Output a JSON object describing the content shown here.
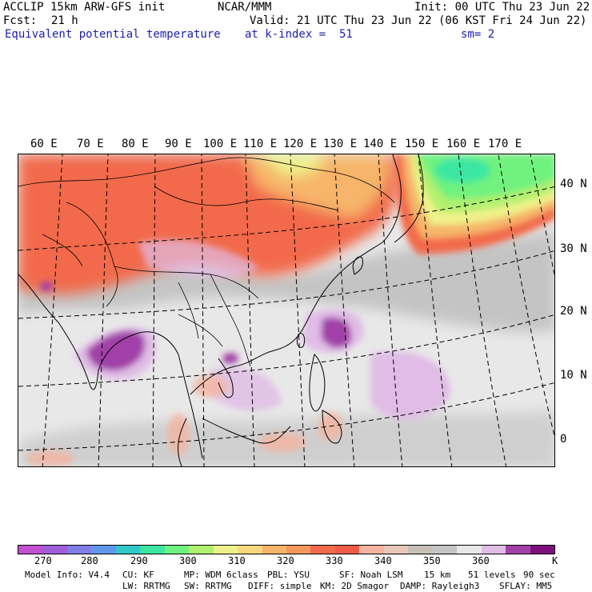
{
  "header": {
    "model": "ACCLIP 15km ARW-GFS init",
    "center": "NCAR/MMM",
    "init": "Init: 00 UTC Thu 23 Jun 22",
    "fcst_label": "Fcst:",
    "fcst_value": "21 h",
    "valid": "Valid: 21 UTC Thu 23 Jun 22 (06 KST Fri 24 Jun 22)",
    "field": "Equivalent potential temperature",
    "level": "at k-index =  51",
    "smooth": "sm= 2"
  },
  "map": {
    "lon_labels": [
      "60 E",
      "70 E",
      "80 E",
      "90 E",
      "100 E",
      "110 E",
      "120 E",
      "130 E",
      "140 E",
      "150 E",
      "160 E",
      "170 E"
    ],
    "lat_labels": [
      "40 N",
      "30 N",
      "20 N",
      "10 N",
      "0"
    ]
  },
  "colorbar": {
    "colors": [
      "#c050d0",
      "#9f5ed8",
      "#7f7ee8",
      "#5f98e8",
      "#30c8c8",
      "#3ce7a3",
      "#6ff27f",
      "#b1f06f",
      "#eef28a",
      "#f8d87e",
      "#f6b56a",
      "#f6975c",
      "#f26a4c",
      "#f05a48",
      "#f4b4a0",
      "#e8c8b8",
      "#c8c0b8",
      "#c4c4c4",
      "#e8e8e8",
      "#e0bce6",
      "#a040a8",
      "#7c107c"
    ],
    "tick_labels": [
      "270",
      "280",
      "290",
      "300",
      "310",
      "320",
      "330",
      "340",
      "350",
      "360"
    ],
    "unit": "K"
  },
  "footer": {
    "line1": [
      "Model Info: V4.4",
      "CU: KF",
      "MP: WDM 6class",
      "PBL: YSU",
      "SF: Noah LSM",
      "15 km",
      "51 levels",
      "90 sec"
    ],
    "line2": [
      "LW: RRTMG",
      "SW: RRTMG",
      "DIFF: simple",
      "KM: 2D Smagor",
      "DAMP: Rayleigh3",
      "SFLAY: MM5"
    ]
  }
}
